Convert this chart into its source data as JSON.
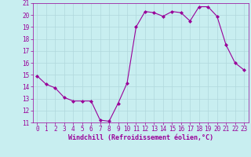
{
  "x": [
    0,
    1,
    2,
    3,
    4,
    5,
    6,
    7,
    8,
    9,
    10,
    11,
    12,
    13,
    14,
    15,
    16,
    17,
    18,
    19,
    20,
    21,
    22,
    23
  ],
  "y": [
    14.9,
    14.2,
    13.9,
    13.1,
    12.8,
    12.8,
    12.8,
    11.2,
    11.1,
    12.6,
    14.3,
    19.0,
    20.3,
    20.2,
    19.9,
    20.3,
    20.2,
    19.5,
    20.7,
    20.7,
    19.9,
    17.5,
    16.0,
    15.4
  ],
  "line_color": "#990099",
  "marker": "D",
  "marker_size": 2,
  "bg_color": "#c8eef0",
  "grid_color": "#b0d8dc",
  "xlabel": "Windchill (Refroidissement éolien,°C)",
  "xlabel_color": "#990099",
  "tick_color": "#990099",
  "label_fontsize": 5.5,
  "xlabel_fontsize": 6,
  "ylim": [
    11,
    21
  ],
  "xlim": [
    -0.5,
    23.5
  ],
  "yticks": [
    11,
    12,
    13,
    14,
    15,
    16,
    17,
    18,
    19,
    20,
    21
  ],
  "xticks": [
    0,
    1,
    2,
    3,
    4,
    5,
    6,
    7,
    8,
    9,
    10,
    11,
    12,
    13,
    14,
    15,
    16,
    17,
    18,
    19,
    20,
    21,
    22,
    23
  ],
  "xtick_labels": [
    "0",
    "1",
    "2",
    "3",
    "4",
    "5",
    "6",
    "7",
    "8",
    "9",
    "10",
    "11",
    "12",
    "13",
    "14",
    "15",
    "16",
    "17",
    "18",
    "19",
    "20",
    "21",
    "22",
    "23"
  ]
}
